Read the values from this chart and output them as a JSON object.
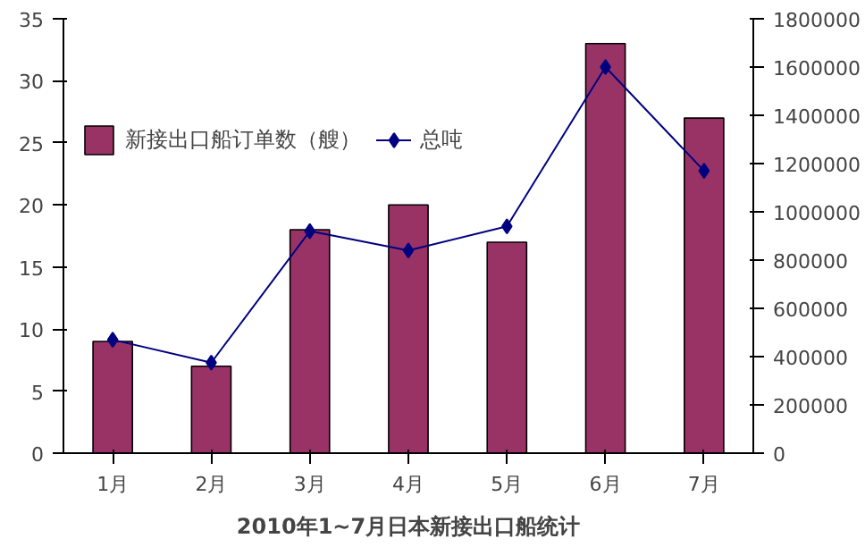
{
  "chart_data": {
    "type": "bar",
    "title": "2010年1~7月日本新接出口船统计",
    "categories": [
      "1月",
      "2月",
      "3月",
      "4月",
      "5月",
      "6月",
      "7月"
    ],
    "series": [
      {
        "name": "新接出口船订单数（艘）",
        "color": "#993366",
        "values": [
          9,
          7,
          18,
          20,
          17,
          33,
          27
        ]
      },
      {
        "name": "总吨",
        "type": "line",
        "axis": "y2",
        "color": "#000080",
        "marker": "diamond",
        "values": [
          470000,
          375000,
          920000,
          840000,
          940000,
          1600000,
          1170000
        ]
      }
    ],
    "ylim": [
      0,
      35
    ],
    "yticks": [
      0,
      5,
      10,
      15,
      20,
      25,
      30,
      35
    ],
    "y2lim": [
      0,
      1800000
    ],
    "y2ticks": [
      0,
      200000,
      400000,
      600000,
      800000,
      1000000,
      1200000,
      1400000,
      1600000,
      1800000
    ],
    "grid": false,
    "legend": "top"
  }
}
